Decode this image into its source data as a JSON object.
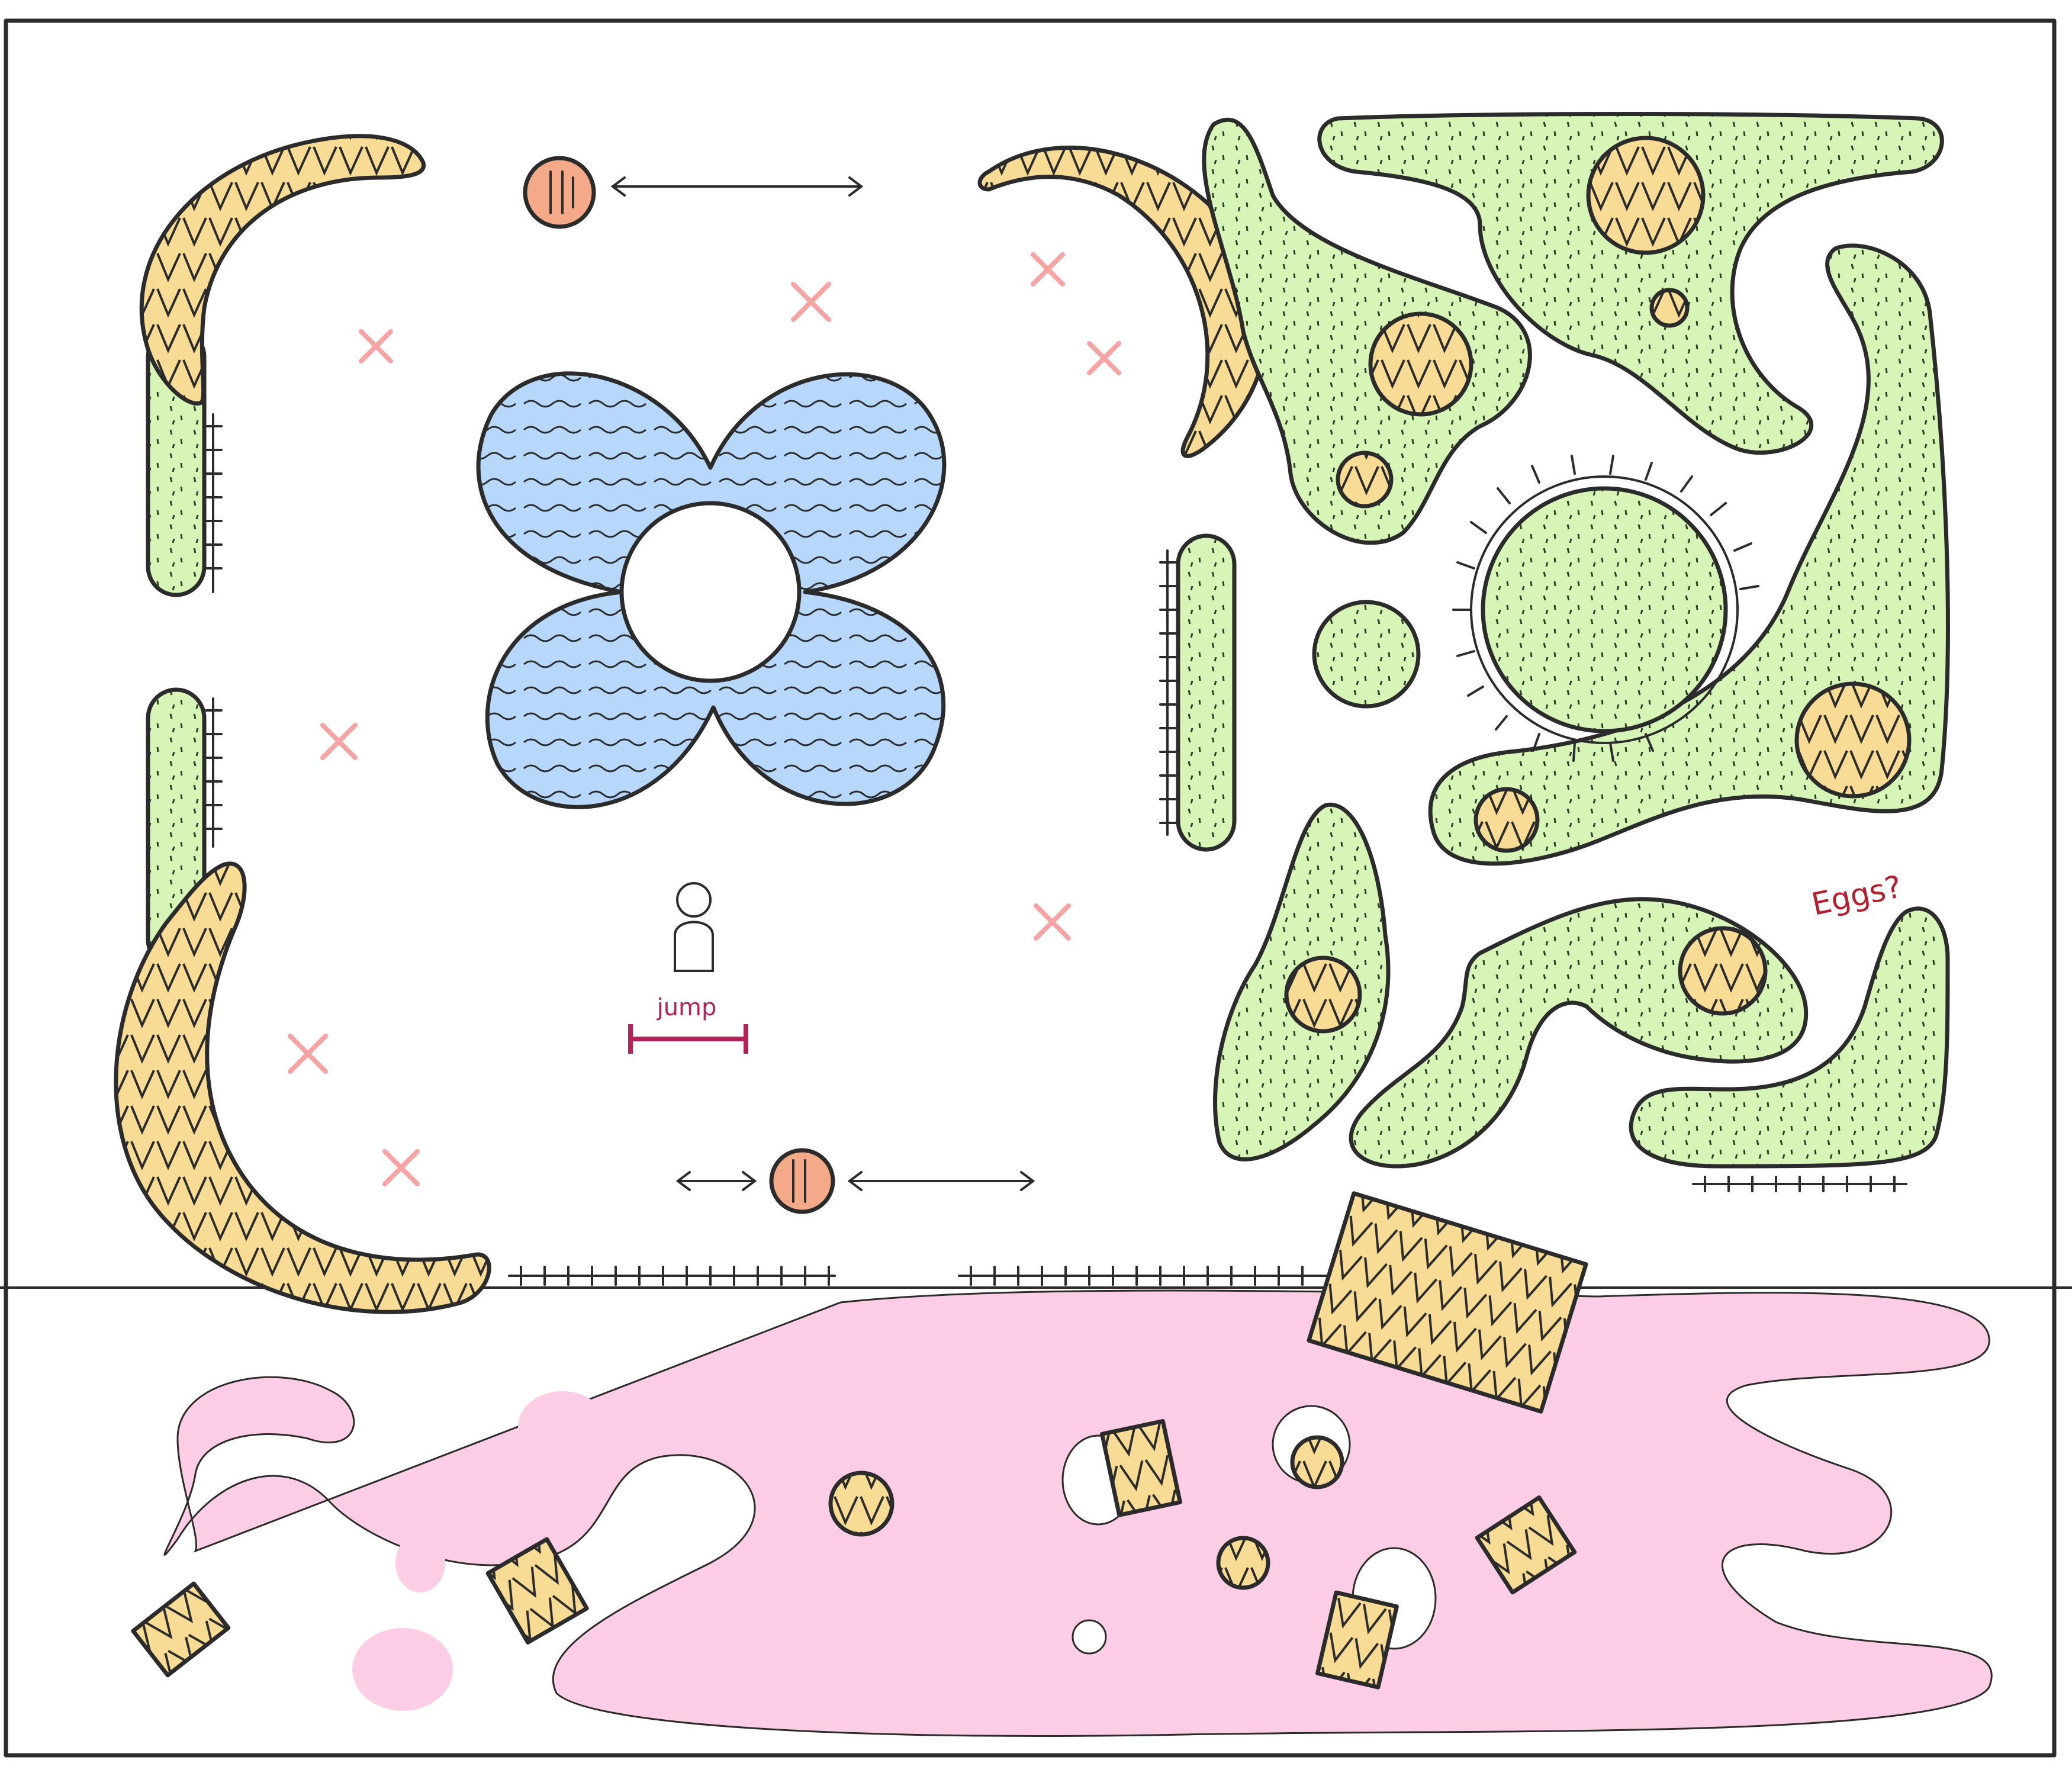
{
  "level_sketch": {
    "annotations": {
      "jump_label": "jump",
      "eggs_label": "Eggs?"
    },
    "legend_colors": {
      "paper": "#ffffff",
      "outline": "#2b2b2b",
      "moss_platform": "#d8f5b8",
      "banana_platform": "#f8dc96",
      "water_flower": "#b7d7fb",
      "pink_goo": "#fccde4",
      "orange_enemy": "#f4aa88",
      "hazard_x": "#f5a3a3",
      "jump_marker": "#b0245a",
      "eggs_text": "#b5202e"
    },
    "icons": {
      "player": "player-pawn-icon",
      "enemy": "orange-ball-enemy-icon",
      "hazard": "x-mark-icon",
      "spikes": "spike-strip-icon",
      "egg": "egg-icon",
      "crate": "striped-crate-icon"
    }
  }
}
